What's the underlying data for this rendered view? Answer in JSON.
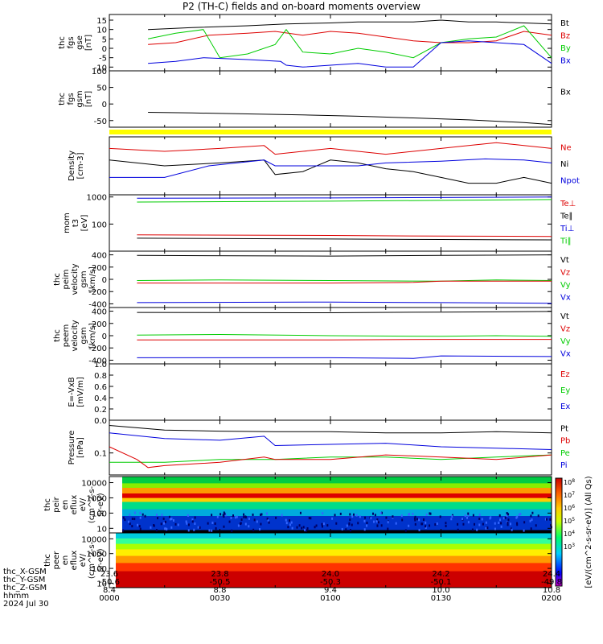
{
  "title": "P2 (TH-C) fields and on-board moments overview",
  "colors": {
    "black": "#000000",
    "red": "#dd0000",
    "green": "#00cc00",
    "blue": "#0000dd",
    "yellow": "#ffff00",
    "grey": "#888888"
  },
  "chart_data": [
    {
      "type": "line",
      "name": "fgs",
      "ylabel": [
        "thc",
        "fgs",
        "gse",
        "[nT]"
      ],
      "yticks": [
        "15",
        "10",
        "5",
        "0",
        "-5",
        "-10"
      ],
      "ylim": [
        -12,
        18
      ],
      "legend": [
        {
          "label": "Bt",
          "color": "#000000"
        },
        {
          "label": "Bz",
          "color": "#dd0000"
        },
        {
          "label": "By",
          "color": "#00cc00"
        },
        {
          "label": "Bx",
          "color": "#0000dd"
        }
      ],
      "series": [
        {
          "name": "Bt",
          "color": "#000000",
          "x": [
            23.67,
            23.75,
            23.85,
            23.92,
            24.0,
            24.05,
            24.1,
            24.15,
            24.2,
            24.25,
            24.3,
            24.35,
            24.4
          ],
          "y": [
            10,
            11,
            12,
            13,
            13.5,
            14,
            14,
            14,
            15,
            14,
            14,
            13.5,
            13
          ]
        },
        {
          "name": "Bz",
          "color": "#dd0000",
          "x": [
            23.67,
            23.72,
            23.78,
            23.85,
            23.9,
            23.95,
            24.0,
            24.05,
            24.1,
            24.15,
            24.2,
            24.25,
            24.3,
            24.35,
            24.4
          ],
          "y": [
            2,
            3,
            7,
            8,
            9,
            7,
            9,
            8,
            6,
            4,
            3,
            3,
            4,
            9,
            7
          ]
        },
        {
          "name": "By",
          "color": "#00cc00",
          "x": [
            23.67,
            23.72,
            23.77,
            23.8,
            23.85,
            23.9,
            23.92,
            23.95,
            24.0,
            24.05,
            24.1,
            24.15,
            24.2,
            24.25,
            24.3,
            24.35,
            24.4
          ],
          "y": [
            5,
            8,
            10,
            -5,
            -3,
            2,
            10,
            -2,
            -3,
            0,
            -2,
            -5,
            3,
            5,
            6,
            12,
            -5
          ]
        },
        {
          "name": "Bx",
          "color": "#0000dd",
          "x": [
            23.67,
            23.72,
            23.77,
            23.85,
            23.91,
            23.92,
            23.95,
            24.0,
            24.05,
            24.1,
            24.15,
            24.2,
            24.25,
            24.3,
            24.35,
            24.4
          ],
          "y": [
            -8,
            -7,
            -5,
            -6,
            -7,
            -9,
            -10,
            -9,
            -8,
            -10,
            -10,
            3,
            4,
            3,
            2,
            -8
          ]
        }
      ]
    },
    {
      "type": "line",
      "name": "fgs_gsm",
      "ylabel": [
        "thc",
        "fgs",
        "gsm",
        "[nT]"
      ],
      "yticks": [
        "100",
        "50",
        "0",
        "-50"
      ],
      "ylim": [
        -70,
        100
      ],
      "legend": [
        {
          "label": "Bx",
          "color": "#000000"
        }
      ],
      "series": [
        {
          "name": "Bx",
          "color": "#000000",
          "x": [
            23.67,
            23.75,
            23.85,
            23.95,
            24.05,
            24.15,
            24.25,
            24.35,
            24.4
          ],
          "y": [
            -25,
            -27,
            -30,
            -33,
            -37,
            -42,
            -48,
            -56,
            -62
          ]
        }
      ]
    },
    {
      "type": "line",
      "name": "density",
      "ylabel": [
        "Density",
        "[cm-3]"
      ],
      "yticks": [],
      "ylim": [
        0,
        10
      ],
      "legend": [
        {
          "label": "Ne",
          "color": "#dd0000"
        },
        {
          "label": "Ni",
          "color": "#000000"
        },
        {
          "label": "Npot",
          "color": "#0000dd"
        }
      ],
      "series": [
        {
          "name": "Ne",
          "color": "#dd0000",
          "x": [
            23.6,
            23.7,
            23.8,
            23.88,
            23.9,
            23.95,
            24.0,
            24.05,
            24.1,
            24.15,
            24.2,
            24.25,
            24.3,
            24.35,
            24.4
          ],
          "y": [
            8,
            7.5,
            8,
            8.5,
            7,
            7.5,
            8,
            7.5,
            7,
            7.5,
            8,
            8.5,
            9,
            8.5,
            8
          ]
        },
        {
          "name": "Ni",
          "color": "#000000",
          "x": [
            23.6,
            23.7,
            23.8,
            23.88,
            23.9,
            23.95,
            24.0,
            24.05,
            24.1,
            24.15,
            24.2,
            24.25,
            24.3,
            24.35,
            24.4
          ],
          "y": [
            6,
            5,
            5.5,
            6,
            3.5,
            4,
            6,
            5.5,
            4.5,
            4,
            3,
            2,
            2,
            3,
            2
          ]
        },
        {
          "name": "Npot",
          "color": "#0000dd",
          "x": [
            23.6,
            23.7,
            23.78,
            23.88,
            23.9,
            24.0,
            24.05,
            24.1,
            24.2,
            24.28,
            24.35,
            24.4
          ],
          "y": [
            3,
            3,
            5,
            6,
            5,
            5,
            5,
            5.5,
            5.8,
            6.2,
            6,
            5.5
          ]
        }
      ]
    },
    {
      "type": "line",
      "name": "temperature",
      "ylabel": [
        "mom",
        "t3",
        "[eV]"
      ],
      "yticks": [
        "1000",
        "100"
      ],
      "ylim": [
        10,
        1200
      ],
      "yscale": "log",
      "legend": [
        {
          "label": "Te⊥",
          "color": "#dd0000"
        },
        {
          "label": "Te∥",
          "color": "#000000"
        },
        {
          "label": "Ti⊥",
          "color": "#0000dd"
        },
        {
          "label": "Ti∥",
          "color": "#00cc00"
        }
      ],
      "series": [
        {
          "name": "Ti⊥",
          "color": "#0000dd",
          "x": [
            23.65,
            24.0,
            24.2,
            24.4
          ],
          "y": [
            900,
            920,
            950,
            1000
          ]
        },
        {
          "name": "Ti∥",
          "color": "#00cc00",
          "x": [
            23.65,
            24.0,
            24.2,
            24.4
          ],
          "y": [
            650,
            700,
            750,
            800
          ]
        },
        {
          "name": "Te⊥",
          "color": "#dd0000",
          "x": [
            23.65,
            24.0,
            24.2,
            24.4
          ],
          "y": [
            40,
            38,
            36,
            35
          ]
        },
        {
          "name": "Te∥",
          "color": "#000000",
          "x": [
            23.65,
            24.0,
            24.2,
            24.4
          ],
          "y": [
            30,
            28,
            27,
            26
          ]
        }
      ]
    },
    {
      "type": "line",
      "name": "peim",
      "ylabel": [
        "thc",
        "peim",
        "velocity",
        "gsm",
        "[km/s]"
      ],
      "yticks": [
        "400",
        "200",
        "0",
        "-200",
        "-400"
      ],
      "ylim": [
        -460,
        460
      ],
      "legend": [
        {
          "label": "Vt",
          "color": "#000000"
        },
        {
          "label": "Vz",
          "color": "#dd0000"
        },
        {
          "label": "Vy",
          "color": "#00cc00"
        },
        {
          "label": "Vx",
          "color": "#0000dd"
        }
      ],
      "series": [
        {
          "name": "Vt",
          "color": "#000000",
          "x": [
            23.65,
            24.0,
            24.2,
            24.4
          ],
          "y": [
            390,
            380,
            390,
            400
          ]
        },
        {
          "name": "Vy",
          "color": "#00cc00",
          "x": [
            23.65,
            23.8,
            24.0,
            24.2,
            24.3,
            24.4
          ],
          "y": [
            -20,
            -10,
            -20,
            -30,
            -10,
            -20
          ]
        },
        {
          "name": "Vz",
          "color": "#dd0000",
          "x": [
            23.65,
            24.0,
            24.15,
            24.2,
            24.4
          ],
          "y": [
            -60,
            -60,
            -50,
            -30,
            -30
          ]
        },
        {
          "name": "Vx",
          "color": "#0000dd",
          "x": [
            23.65,
            24.0,
            24.2,
            24.4
          ],
          "y": [
            -380,
            -370,
            -380,
            -390
          ]
        }
      ]
    },
    {
      "type": "line",
      "name": "peem",
      "ylabel": [
        "thc",
        "peem",
        "velocity",
        "gsm",
        "[km/s]"
      ],
      "yticks": [
        "400",
        "200",
        "0",
        "-200",
        "-400"
      ],
      "ylim": [
        -460,
        460
      ],
      "legend": [
        {
          "label": "Vt",
          "color": "#000000"
        },
        {
          "label": "Vz",
          "color": "#dd0000"
        },
        {
          "label": "Vy",
          "color": "#00cc00"
        },
        {
          "label": "Vx",
          "color": "#0000dd"
        }
      ],
      "series": [
        {
          "name": "Vt",
          "color": "#000000",
          "x": [
            23.65,
            24.0,
            24.2,
            24.4
          ],
          "y": [
            380,
            375,
            385,
            395
          ]
        },
        {
          "name": "Vy",
          "color": "#00cc00",
          "x": [
            23.65,
            23.8,
            24.0,
            24.2,
            24.3,
            24.4
          ],
          "y": [
            10,
            20,
            0,
            -10,
            0,
            -10
          ]
        },
        {
          "name": "Vz",
          "color": "#dd0000",
          "x": [
            23.65,
            24.0,
            24.2,
            24.4
          ],
          "y": [
            -70,
            -70,
            -60,
            -60
          ]
        },
        {
          "name": "Vx",
          "color": "#0000dd",
          "x": [
            23.65,
            24.0,
            24.15,
            24.2,
            24.4
          ],
          "y": [
            -360,
            -360,
            -370,
            -330,
            -340
          ]
        }
      ]
    },
    {
      "type": "line",
      "name": "efield",
      "ylabel": [
        "E=-VxB",
        "[mV/m]"
      ],
      "yticks": [
        "1.0",
        "0.8",
        "0.6",
        "0.4",
        "0.2",
        "0.0"
      ],
      "ylim": [
        0,
        1
      ],
      "legend": [
        {
          "label": "Ez",
          "color": "#dd0000"
        },
        {
          "label": "Ey",
          "color": "#00cc00"
        },
        {
          "label": "Ex",
          "color": "#0000dd"
        }
      ],
      "series": []
    },
    {
      "type": "line",
      "name": "pressure",
      "ylabel": [
        "Pressure",
        "[nPa]"
      ],
      "yticks": [
        "0.1"
      ],
      "ylim": [
        0.03,
        0.6
      ],
      "yscale": "log",
      "legend": [
        {
          "label": "Pt",
          "color": "#000000"
        },
        {
          "label": "Pb",
          "color": "#dd0000"
        },
        {
          "label": "Pe",
          "color": "#00cc00"
        },
        {
          "label": "Pi",
          "color": "#0000dd"
        }
      ],
      "series": [
        {
          "name": "Pt",
          "color": "#000000",
          "x": [
            23.6,
            23.7,
            23.8,
            23.9,
            24.0,
            24.1,
            24.2,
            24.3,
            24.4
          ],
          "y": [
            0.45,
            0.35,
            0.33,
            0.32,
            0.32,
            0.3,
            0.3,
            0.32,
            0.3
          ]
        },
        {
          "name": "Pi",
          "color": "#0000dd",
          "x": [
            23.6,
            23.7,
            23.8,
            23.88,
            23.9,
            24.0,
            24.1,
            24.2,
            24.3,
            24.4
          ],
          "y": [
            0.3,
            0.22,
            0.2,
            0.25,
            0.15,
            0.16,
            0.17,
            0.14,
            0.13,
            0.12
          ]
        },
        {
          "name": "Pe",
          "color": "#00cc00",
          "x": [
            23.6,
            23.7,
            23.8,
            23.9,
            24.0,
            24.1,
            24.2,
            24.3,
            24.4
          ],
          "y": [
            0.06,
            0.06,
            0.07,
            0.07,
            0.08,
            0.08,
            0.07,
            0.08,
            0.09
          ]
        },
        {
          "name": "Pb",
          "color": "#dd0000",
          "x": [
            23.6,
            23.65,
            23.67,
            23.7,
            23.8,
            23.88,
            23.9,
            24.0,
            24.1,
            24.2,
            24.3,
            24.4
          ],
          "y": [
            0.14,
            0.07,
            0.045,
            0.05,
            0.06,
            0.08,
            0.07,
            0.07,
            0.09,
            0.08,
            0.07,
            0.09
          ]
        }
      ]
    },
    {
      "type": "heatmap",
      "name": "peir",
      "ylabel": [
        "thc",
        "peir",
        "en",
        "eflux",
        "eV/",
        "(cm^2-s-",
        "sr-eV)"
      ],
      "yticks": [
        "10000",
        "1000",
        "100",
        "10"
      ],
      "ylim": [
        5,
        25000
      ],
      "yscale": "log"
    },
    {
      "type": "heatmap",
      "name": "peer",
      "ylabel": [
        "thc",
        "peer",
        "en",
        "eflux",
        "eV/",
        "(cm^2-s-",
        "sr-eV)"
      ],
      "yticks": [
        "10000",
        "1000",
        "100",
        "10"
      ],
      "ylim": [
        5,
        25000
      ],
      "yscale": "log"
    }
  ],
  "colorbar": {
    "ticks": [
      "10^8",
      "10^7",
      "10^6",
      "10^5",
      "10^4",
      "10^3"
    ],
    "label": "[eV/(cm^2-s-sr-eV)] (All Qs)"
  },
  "x_axis": {
    "xlim": [
      23.6,
      24.4
    ],
    "rows": [
      {
        "label": "thc_X-GSM",
        "values": [
          "23.6",
          "23.8",
          "24.0",
          "24.2",
          "24.4"
        ]
      },
      {
        "label": "thc_Y-GSM",
        "values": [
          "-50.6",
          "-50.5",
          "-50.3",
          "-50.1",
          "-49.8"
        ]
      },
      {
        "label": "thc_Z-GSM",
        "values": [
          "8.4",
          "8.8",
          "9.4",
          "10.0",
          "10.8"
        ]
      },
      {
        "label": "hhmm",
        "values": [
          "0000",
          "0030",
          "0100",
          "0130",
          "0200"
        ]
      }
    ],
    "date": "2024 Jul 30"
  }
}
